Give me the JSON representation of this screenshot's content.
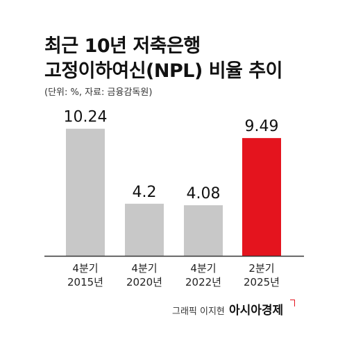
{
  "header": {
    "title_line1": "최근 10년 저축은행",
    "title_line2": "고정이하여신(NPL) 비율 추이",
    "source": "(단위: %, 자료: 금융감독원)"
  },
  "footer": {
    "credit": "그래픽 이지현",
    "brand": "아시아경제"
  },
  "colors": {
    "bar_default": "#c8c8c8",
    "bar_highlight": "#e4141e",
    "text": "#111111"
  },
  "chart_data": {
    "type": "bar",
    "categories": [
      [
        "4분기",
        "2015년"
      ],
      [
        "4분기",
        "2020년"
      ],
      [
        "4분기",
        "2022년"
      ],
      [
        "2분기",
        "2025년"
      ]
    ],
    "values": [
      10.24,
      4.2,
      4.08,
      9.49
    ],
    "value_labels": [
      "10.24",
      "4.2",
      "4.08",
      "9.49"
    ],
    "highlight_index": 3,
    "ylim": [
      0,
      16.2
    ],
    "grid": false
  }
}
